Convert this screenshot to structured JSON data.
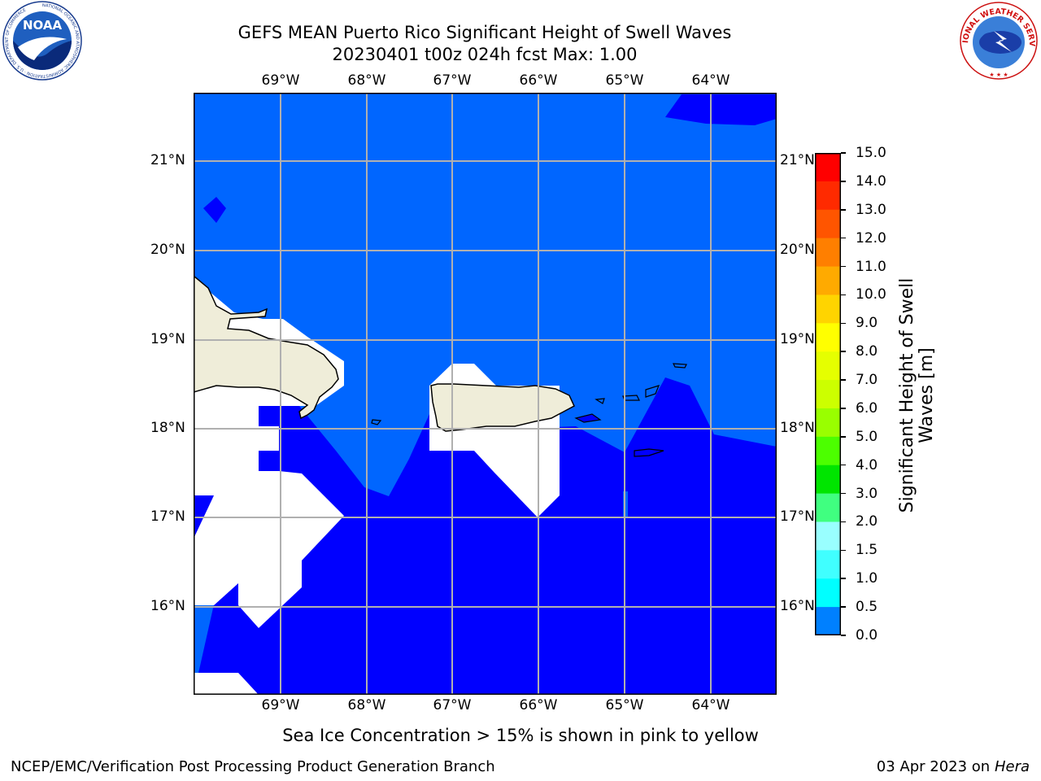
{
  "header": {
    "title_line1": "GEFS MEAN Puerto Rico Significant Height of Swell Waves",
    "title_line2": "20230401 t00z 024h fcst   Max: 1.00"
  },
  "logos": {
    "left": {
      "icon": "noaa-logo",
      "text": "NOAA",
      "ring_text": "NATIONAL OCEANIC AND ATMOSPHERIC ADMINISTRATION · U.S. DEPARTMENT OF COMMERCE"
    },
    "right": {
      "icon": "nws-logo",
      "ring_text": "NATIONAL WEATHER SERVICE"
    }
  },
  "map": {
    "lon_labels": [
      "69°W",
      "68°W",
      "67°W",
      "66°W",
      "65°W",
      "64°W"
    ],
    "lat_labels": [
      "21°N",
      "20°N",
      "19°N",
      "18°N",
      "17°N",
      "16°N"
    ],
    "colors": {
      "ocean_light": "#0066ff",
      "ocean_dark": "#0000ff",
      "land": "#efedd9",
      "masked": "#ffffff",
      "grid": "#b0b0b0"
    }
  },
  "colorbar": {
    "label_line1": "Significant Height of Swell",
    "label_line2": "Waves [m]",
    "ticks": [
      "15.0",
      "14.0",
      "13.0",
      "12.0",
      "11.0",
      "10.0",
      "9.0",
      "8.0",
      "7.0",
      "6.0",
      "5.0",
      "4.0",
      "3.0",
      "2.0",
      "1.5",
      "1.0",
      "0.5",
      "0.0"
    ],
    "colors": [
      "#ff0000",
      "#ff2a00",
      "#ff5500",
      "#ff7f00",
      "#ffaa00",
      "#ffd400",
      "#ffff00",
      "#e5ff00",
      "#ccff00",
      "#99ff00",
      "#4cff00",
      "#00e500",
      "#40ff80",
      "#99ffff",
      "#40ffff",
      "#00ffff",
      "#0080ff",
      "#0000ff"
    ]
  },
  "notes": {
    "sea_ice": "Sea Ice Concentration > 15% is shown in pink to yellow"
  },
  "footer": {
    "left": "NCEP/EMC/Verification Post Processing Product Generation Branch",
    "right_date": "03 Apr 2023 on ",
    "right_host": "Hera"
  }
}
